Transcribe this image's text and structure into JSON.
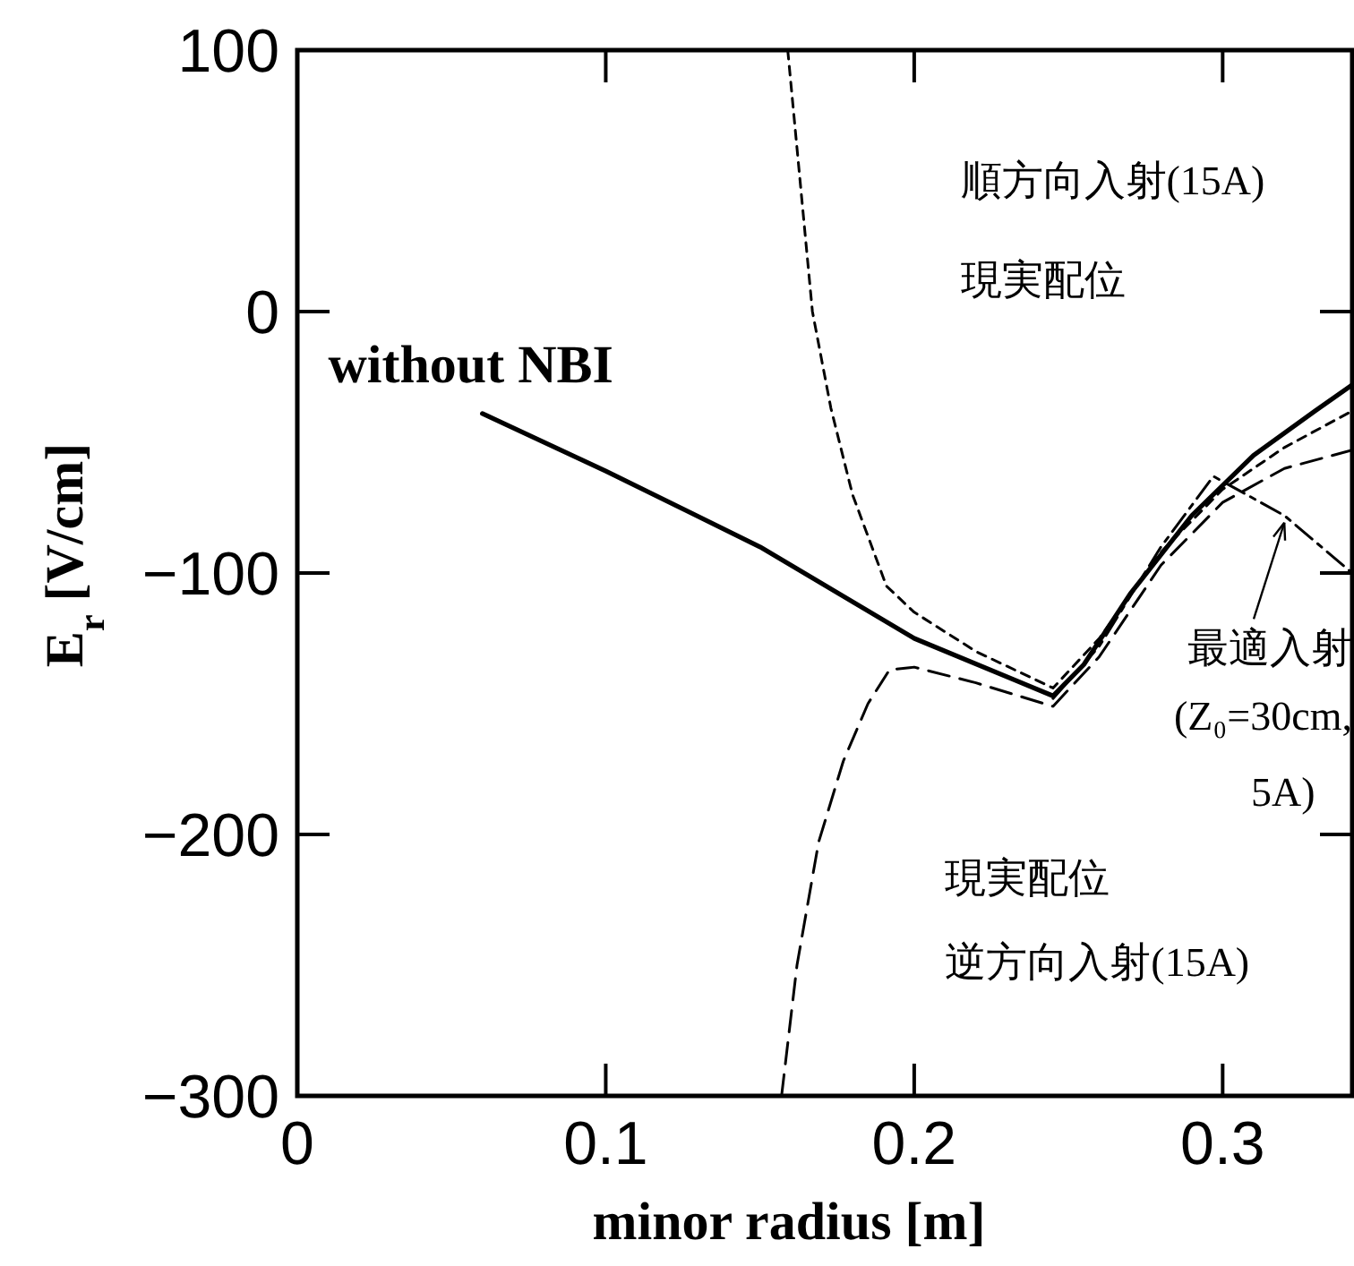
{
  "chart_data": {
    "type": "line",
    "xlabel": "minor radius [m]",
    "ylabel": "E$_{r}$ [V/cm]",
    "xlim": [
      0,
      0.342
    ],
    "ylim": [
      -300,
      100
    ],
    "xticks": [
      0,
      0.1,
      0.2,
      0.3
    ],
    "yticks": [
      100,
      0,
      -100,
      -200,
      -300
    ],
    "grid": false,
    "annotations": [
      "without NBI",
      "順方向入射(15A)",
      "現実配位",
      "現実配位",
      "逆方向入射(15A)",
      {
        "text": "最適入射",
        "x": 0.32,
        "y": -78
      },
      "(Z₀=30cm,",
      "5A)"
    ],
    "series": [
      {
        "color": "#000000",
        "line_style": "solid",
        "x": [
          0.06,
          0.1,
          0.15,
          0.2,
          0.245,
          0.255,
          0.27,
          0.29,
          0.31,
          0.33,
          0.342
        ],
        "values": [
          -39,
          -61,
          -90,
          -125,
          -147,
          -135,
          -108,
          -78,
          -55,
          -38,
          -28
        ]
      },
      {
        "color": "#000000",
        "line_style": "dotted",
        "x": [
          0.159,
          0.163,
          0.167,
          0.173,
          0.18,
          0.191,
          0.2,
          0.22,
          0.245,
          0.26,
          0.28,
          0.3,
          0.32,
          0.342
        ],
        "values": [
          100,
          50,
          0,
          -37,
          -70,
          -105,
          -115,
          -130,
          -144,
          -125,
          -92,
          -68,
          -52,
          -38
        ]
      },
      {
        "color": "#000000",
        "line_style": "dashed",
        "x": [
          0.157,
          0.162,
          0.169,
          0.177,
          0.185,
          0.192,
          0.2,
          0.22,
          0.245,
          0.26,
          0.28,
          0.3,
          0.32,
          0.342
        ],
        "values": [
          -300,
          -250,
          -203,
          -172,
          -150,
          -137,
          -136,
          -142,
          -151,
          -132,
          -97,
          -73,
          -60,
          -53
        ]
      },
      {
        "color": "#000000",
        "line_style": "dashdot",
        "x": [
          0.245,
          0.26,
          0.28,
          0.297,
          0.32,
          0.342
        ],
        "values": [
          -148,
          -128,
          -90,
          -63,
          -78,
          -100
        ]
      }
    ]
  }
}
